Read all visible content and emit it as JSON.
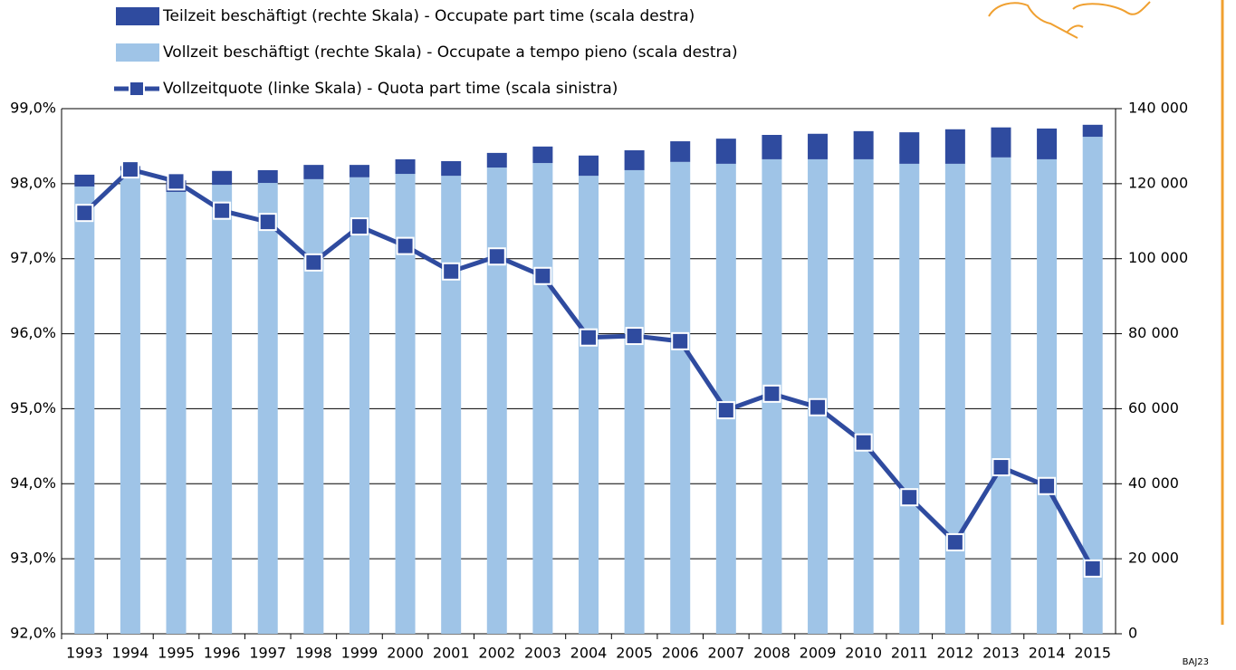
{
  "chart_data": {
    "type": "bar",
    "categories": [
      "1993",
      "1994",
      "1995",
      "1996",
      "1997",
      "1998",
      "1999",
      "2000",
      "2001",
      "2002",
      "2003",
      "2004",
      "2005",
      "2006",
      "2007",
      "2008",
      "2009",
      "2010",
      "2011",
      "2012",
      "2013",
      "2014",
      "2015"
    ],
    "series": [
      {
        "name": "Teilzeit beschäftigt (rechte Skala) - Occupate part time (scala destra)",
        "type": "bar",
        "axis": "y2",
        "color": "#2f4b9f",
        "values": [
          3150,
          1200,
          3100,
          3700,
          3400,
          3800,
          3300,
          3900,
          3900,
          3900,
          4400,
          5400,
          5300,
          5500,
          6700,
          6500,
          6800,
          7500,
          8400,
          9200,
          8000,
          8200,
          3200
        ]
      },
      {
        "name": "Vollzeit beschäftigt (rechte Skala) - Occupate a tempo pieno (scala destra)",
        "type": "bar",
        "axis": "y2",
        "color": "#9fc4e7",
        "values": [
          119250,
          123500,
          117800,
          119700,
          120200,
          121200,
          121700,
          122600,
          122100,
          124300,
          125500,
          122100,
          123600,
          125800,
          125300,
          126500,
          126500,
          126500,
          125300,
          125300,
          127000,
          126500,
          132500
        ]
      },
      {
        "name": "Vollzeitquote (linke Skala) - Quota part time (scala sinistra)",
        "type": "line",
        "axis": "y",
        "color": "#2f4b9f",
        "values": [
          97.61,
          98.19,
          98.03,
          97.64,
          97.49,
          96.95,
          97.43,
          97.17,
          96.83,
          97.03,
          96.77,
          95.95,
          95.97,
          95.9,
          94.98,
          95.2,
          95.02,
          94.55,
          93.82,
          93.22,
          94.22,
          93.97,
          92.87
        ]
      }
    ],
    "ylim": [
      92,
      99
    ],
    "yticks": [
      {
        "value": 92,
        "label": "92,0%"
      },
      {
        "value": 93,
        "label": "93,0%"
      },
      {
        "value": 94,
        "label": "94,0%"
      },
      {
        "value": 95,
        "label": "95,0%"
      },
      {
        "value": 96,
        "label": "96,0%"
      },
      {
        "value": 97,
        "label": "97,0%"
      },
      {
        "value": 98,
        "label": "98,0%"
      },
      {
        "value": 99,
        "label": "99,0%"
      }
    ],
    "y2lim": [
      0,
      140000
    ],
    "y2ticks": [
      0,
      {
        "value": 20000,
        "label": "20 000"
      },
      {
        "value": 40000,
        "label": "40 000"
      },
      {
        "value": 60000,
        "label": "60 000"
      },
      {
        "value": 80000,
        "label": "80 000"
      },
      {
        "value": 100000,
        "label": "100 000"
      },
      {
        "value": 120000,
        "label": "120 000"
      },
      {
        "value": 140000,
        "label": "140 000"
      }
    ],
    "grid": true,
    "source_code": "BAJ23"
  }
}
